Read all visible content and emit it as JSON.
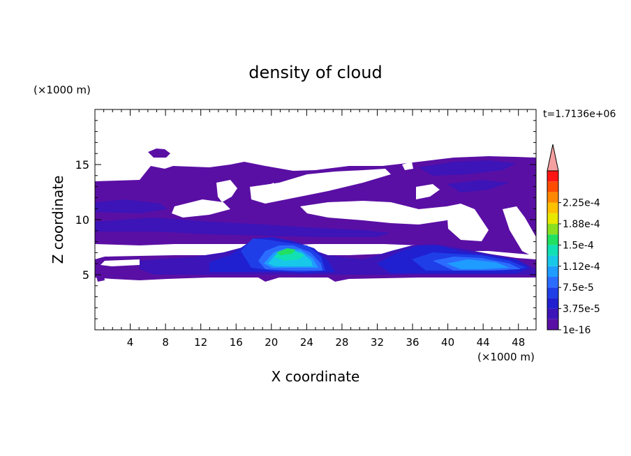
{
  "chart_data": {
    "type": "heatmap",
    "title": "density of cloud",
    "xlabel": "X coordinate",
    "ylabel": "Z coordinate",
    "x_unit": "(×1000 m)",
    "y_unit": "(×1000 m)",
    "time_label": "t=1.7136e+06",
    "xlim": [
      0,
      50
    ],
    "ylim": [
      0,
      20
    ],
    "x_ticks": [
      4,
      8,
      12,
      16,
      20,
      24,
      28,
      32,
      36,
      40,
      44,
      48
    ],
    "y_ticks": [
      5,
      10,
      15
    ],
    "colorbar": {
      "labels": [
        "1e-16",
        "3.75e-5",
        "7.5e-5",
        "1.12e-4",
        "1.5e-4",
        "1.88e-4",
        "2.25e-4"
      ],
      "extend": "max",
      "colors": [
        "#5a0fa4",
        "#3c14b8",
        "#2020d0",
        "#1f3ee8",
        "#2b6cff",
        "#1f9cff",
        "#18c8e8",
        "#10e0b4",
        "#22e060",
        "#8ae020",
        "#e8e800",
        "#ffc000",
        "#ff8800",
        "#ff4c00",
        "#ff1414",
        "#f4a0a0"
      ]
    },
    "features": [
      {
        "name": "upper cloud layer",
        "x_range": [
          0,
          50
        ],
        "z_range": [
          8,
          15.5
        ],
        "level": "1e-16 to 3.75e-5"
      },
      {
        "name": "lower cloud band",
        "x_range": [
          0,
          50
        ],
        "z_range": [
          5,
          7.5
        ],
        "level": "3.75e-5 to 7.5e-5"
      },
      {
        "name": "convective core",
        "x_center": 22.5,
        "z_center": 6.8,
        "max_level": "1.5e-4"
      },
      {
        "name": "eastern core",
        "x_center": 40,
        "z_center": 6.2,
        "max_level": "1.12e-4"
      }
    ]
  }
}
